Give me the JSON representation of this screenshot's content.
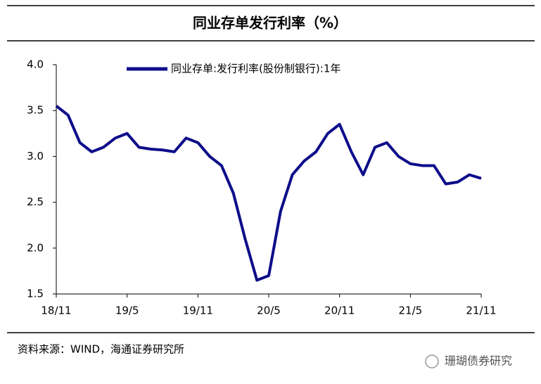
{
  "chart_data": {
    "type": "line",
    "title": "同业存单发行利率（%）",
    "categories": [
      "18/11",
      null,
      null,
      null,
      null,
      null,
      "19/5",
      null,
      null,
      null,
      null,
      null,
      "19/11",
      null,
      null,
      null,
      null,
      null,
      "20/5",
      null,
      null,
      null,
      null,
      null,
      "20/11",
      null,
      null,
      null,
      null,
      null,
      "21/5",
      null,
      null,
      null,
      null,
      null,
      "21/11"
    ],
    "series": [
      {
        "name": "同业存单:发行利率(股份制银行):1年",
        "color": "#0d0d8a",
        "values": [
          3.55,
          3.45,
          3.15,
          3.05,
          3.1,
          3.2,
          3.25,
          3.1,
          3.08,
          3.07,
          3.05,
          3.2,
          3.15,
          3.0,
          2.9,
          2.6,
          2.1,
          1.65,
          1.7,
          2.4,
          2.8,
          2.95,
          3.05,
          3.25,
          3.35,
          3.05,
          2.8,
          3.1,
          3.15,
          3.0,
          2.92,
          2.9,
          2.9,
          2.7,
          2.72,
          2.8,
          2.76
        ]
      }
    ],
    "ylim": [
      1.5,
      4.0
    ],
    "yticks": [
      {
        "value": 1.5,
        "label": "1.5"
      },
      {
        "value": 2,
        "label": "2.0"
      },
      {
        "value": 2.5,
        "label": "2.5"
      },
      {
        "value": 3,
        "label": "3.0"
      },
      {
        "value": 3.5,
        "label": "3.5"
      },
      {
        "value": 4,
        "label": "4.0"
      }
    ],
    "legend": "top",
    "source": "资料来源：WIND，海通证券研究所",
    "watermark": "珊瑚债券研究"
  }
}
